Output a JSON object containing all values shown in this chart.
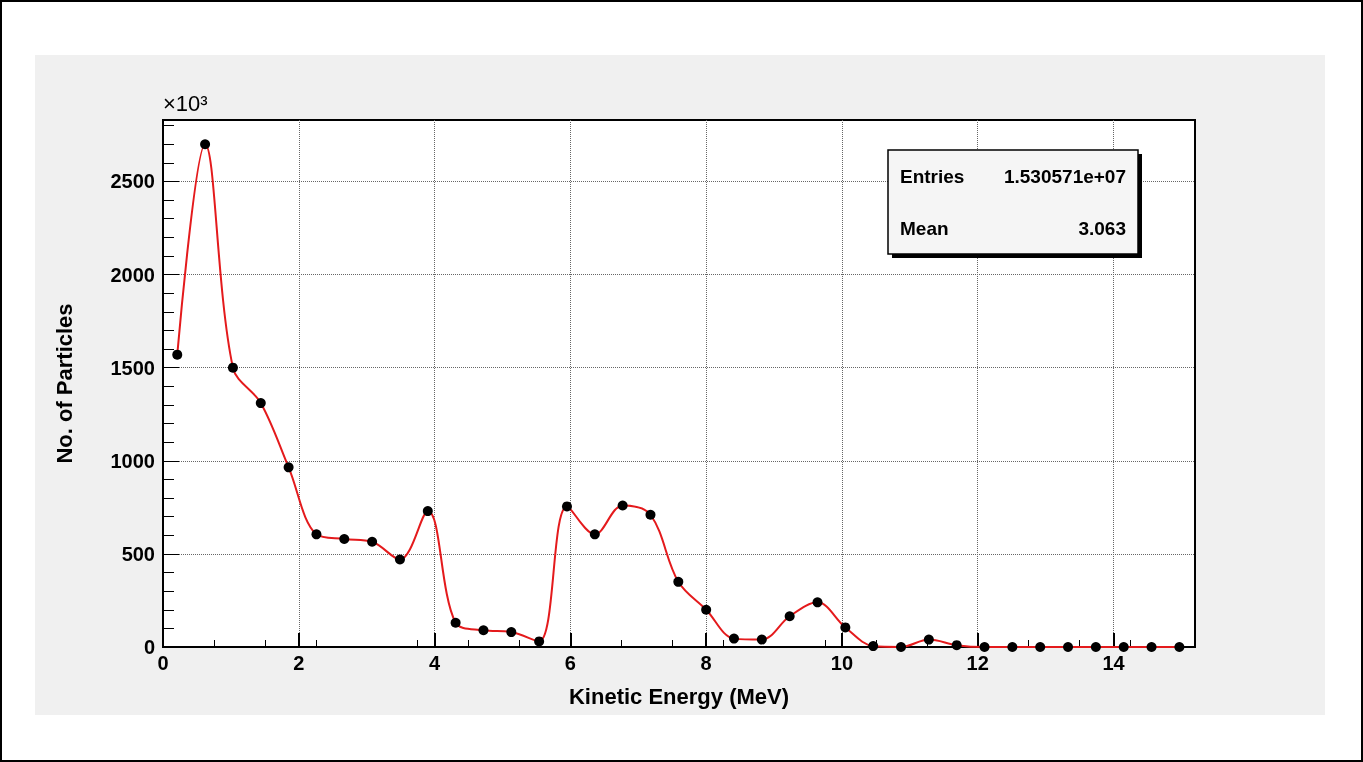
{
  "chart_data": {
    "type": "line",
    "xlabel": "Kinetic Energy (MeV)",
    "ylabel": "No. of Particles",
    "annotations": [
      "×10³",
      "Entries",
      "1.530571e+07",
      "Mean",
      "3.063"
    ],
    "xlim": [
      0,
      15.2
    ],
    "xticks": [
      0,
      2,
      4,
      6,
      8,
      10,
      12,
      14
    ],
    "ylim": [
      0,
      2830
    ],
    "yticks": [
      0,
      500,
      1000,
      1500,
      2000,
      2500
    ],
    "grid": true,
    "marker": "circle",
    "line_style": "solid",
    "series": [
      {
        "color": "#e41a1c",
        "x": [
          0.21,
          0.62,
          1.03,
          1.44,
          1.85,
          2.26,
          2.67,
          3.08,
          3.49,
          3.9,
          4.31,
          4.72,
          5.13,
          5.54,
          5.95,
          6.36,
          6.77,
          7.18,
          7.59,
          8.0,
          8.41,
          8.82,
          9.23,
          9.64,
          10.05,
          10.46,
          10.87,
          11.28,
          11.69,
          12.1,
          12.51,
          12.92,
          13.33,
          13.74,
          14.15,
          14.56,
          14.97
        ],
        "values": [
          1570,
          2700,
          1500,
          1310,
          965,
          605,
          580,
          565,
          470,
          730,
          130,
          90,
          80,
          30,
          755,
          605,
          760,
          710,
          350,
          200,
          45,
          40,
          165,
          240,
          105,
          5,
          0,
          40,
          10,
          0,
          0,
          0,
          0,
          0,
          0,
          0,
          0
        ]
      }
    ]
  }
}
